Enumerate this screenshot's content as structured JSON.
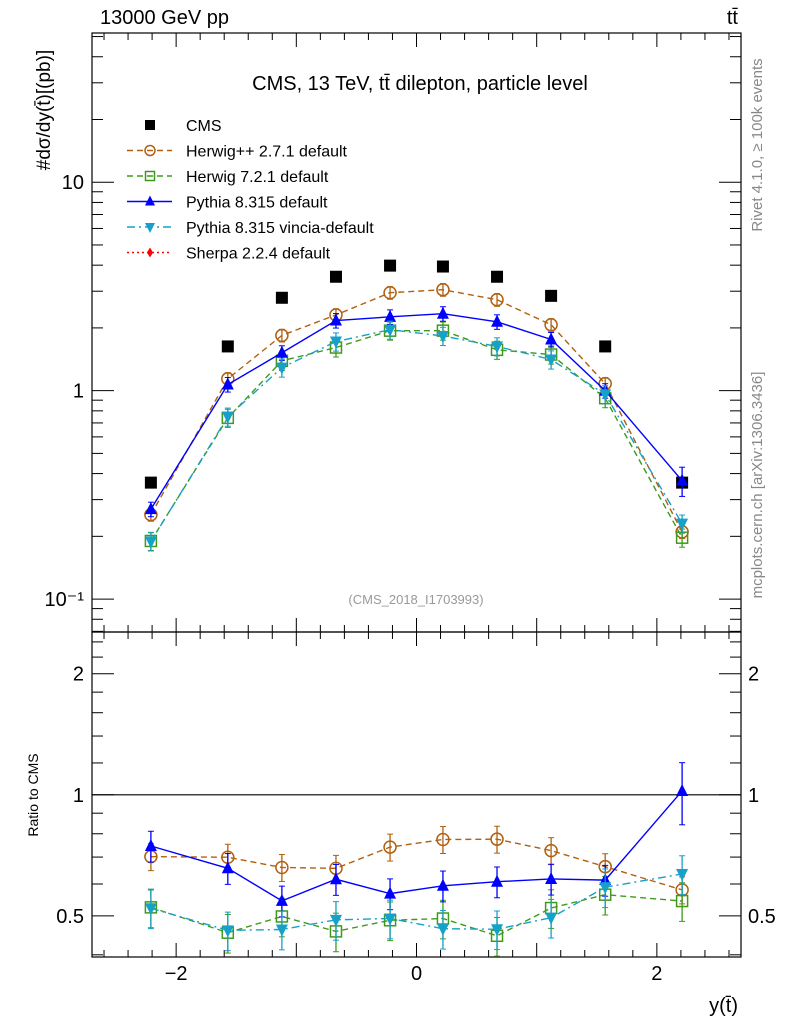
{
  "header": {
    "beam_label": "13000 GeV pp",
    "process_label": "tt̄"
  },
  "side_labels": {
    "rivet": "Rivet 4.1.0, ≥ 100k events",
    "mcplots": "mcplots.cern.ch [arXiv:1306.3436]"
  },
  "chart_data": {
    "type": "scatter",
    "title": "CMS, 13 TeV, tt̄ dilepton, particle level",
    "analysis_id": "(CMS_2018_I1703993)",
    "xlabel": "y(t̄)",
    "ylabel": "#dσ/dy(t̄)[(pb)]",
    "ratio_ylabel": "Ratio to CMS",
    "xlim": [
      -2.7,
      2.7
    ],
    "ylim": [
      0.0695,
      52
    ],
    "yscale": "log",
    "ratio_ylim": [
      0.395,
      2.54
    ],
    "ratio_yscale": "log2",
    "x_ticks": [
      {
        "v": -2,
        "label": "−2"
      },
      {
        "v": 0,
        "label": "0"
      },
      {
        "v": 2,
        "label": "2"
      }
    ],
    "y_ticks": [
      {
        "v": 10,
        "label": "10"
      },
      {
        "v": 1,
        "label": "1"
      },
      {
        "v": 0.1,
        "label": "10⁻¹"
      }
    ],
    "ratio_ticks": [
      {
        "v": 2,
        "label": "2"
      },
      {
        "v": 1,
        "label": "1"
      },
      {
        "v": 0.5,
        "label": "0.5"
      }
    ],
    "legend_placement": "top-left",
    "x": [
      -2.21,
      -1.57,
      -1.12,
      -0.67,
      -0.22,
      0.22,
      0.67,
      1.12,
      1.57,
      2.21
    ],
    "series": [
      {
        "name": "CMS",
        "color": "#000000",
        "marker": "square",
        "line": "none",
        "rel_err": 0.02,
        "values": [
          0.362,
          1.63,
          2.79,
          3.52,
          3.98,
          3.94,
          3.52,
          2.85,
          1.63,
          0.362
        ]
      },
      {
        "name": "Herwig++ 2.7.1 default",
        "color": "#b0600f",
        "marker": "circle-open",
        "line": "dashed",
        "rel_err": 0.07,
        "values": [
          0.254,
          1.14,
          1.84,
          2.31,
          2.95,
          3.05,
          2.73,
          2.07,
          1.08,
          0.21
        ]
      },
      {
        "name": "Herwig 7.2.1 default",
        "color": "#3f9a1c",
        "marker": "square-open",
        "line": "dashed",
        "rel_err": 0.1,
        "values": [
          0.19,
          0.74,
          1.39,
          1.61,
          1.94,
          1.94,
          1.57,
          1.49,
          0.92,
          0.197
        ]
      },
      {
        "name": "Pythia 8.315 default",
        "color": "#0000ff",
        "marker": "triangle-up",
        "line": "solid",
        "rel_err": 0.08,
        "values": [
          0.27,
          1.07,
          1.52,
          2.17,
          2.26,
          2.34,
          2.14,
          1.76,
          1.0,
          0.37
        ]
      },
      {
        "name": "Pythia 8.315 vincia-default",
        "color": "#17a0c8",
        "marker": "triangle-down",
        "line": "dashdot",
        "rel_err": 0.1,
        "values": [
          0.189,
          0.75,
          1.29,
          1.72,
          1.96,
          1.83,
          1.63,
          1.41,
          0.96,
          0.23
        ]
      },
      {
        "name": "Sherpa 2.2.4 default",
        "color": "#ff0000",
        "marker": "diamond",
        "line": "dotted",
        "rel_err": 0.1,
        "values": []
      }
    ]
  }
}
